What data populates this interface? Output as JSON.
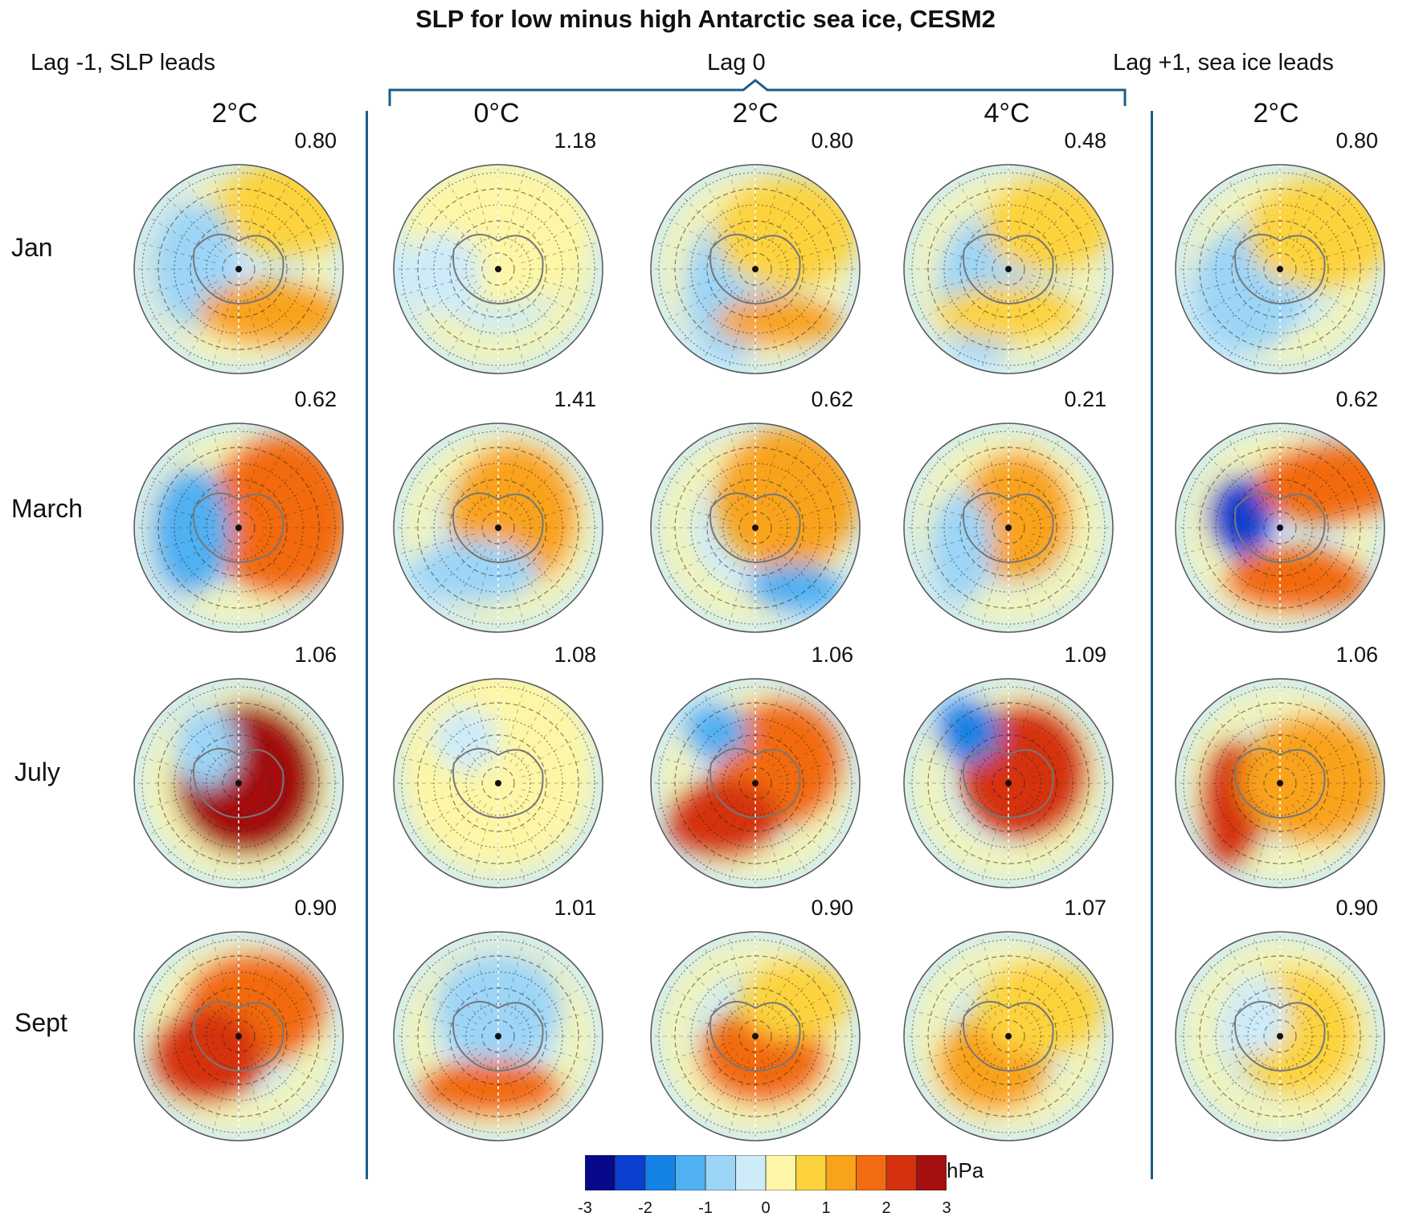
{
  "title": "SLP for low minus high Antarctic sea ice, CESM2",
  "headers": {
    "left": "Lag -1, SLP leads",
    "center": "Lag 0",
    "right": "Lag +1, sea ice leads"
  },
  "columns": [
    "2°C",
    "0°C",
    "2°C",
    "4°C",
    "2°C"
  ],
  "rows": [
    "Jan",
    "March",
    "July",
    "Sept"
  ],
  "panel_values": [
    [
      "0.80",
      "1.18",
      "0.80",
      "0.48",
      "0.80"
    ],
    [
      "0.62",
      "1.41",
      "0.62",
      "0.21",
      "0.62"
    ],
    [
      "1.06",
      "1.08",
      "1.06",
      "1.09",
      "1.06"
    ],
    [
      "0.90",
      "1.01",
      "0.90",
      "1.07",
      "0.90"
    ]
  ],
  "colorbar": {
    "unit": "hPa",
    "tick_labels": [
      "-3",
      "-2",
      "-1",
      "0",
      "1",
      "2",
      "3"
    ],
    "colors": [
      "#08088a",
      "#0a3fcf",
      "#1582e6",
      "#4fb0f2",
      "#9dd5f7",
      "#cdebf9",
      "#fdf6a6",
      "#fcd33d",
      "#f9a31b",
      "#f26a11",
      "#d5310e",
      "#a50f0f"
    ]
  }
}
